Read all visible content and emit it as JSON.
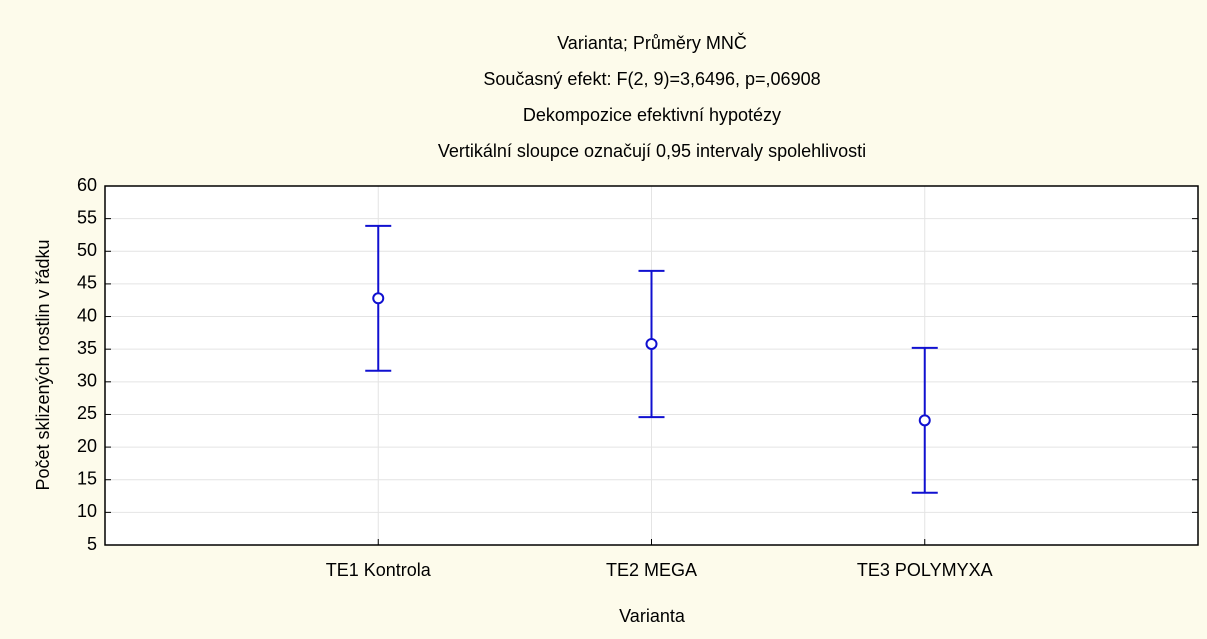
{
  "chart_data": {
    "type": "errorbar",
    "title": "Varianta; Průměry MNČ",
    "subtitles": [
      "Současný efekt: F(2, 9)=3,6496, p=,06908",
      "Dekompozice efektivní hypotézy",
      "Vertikální sloupce označují 0,95 intervaly spolehlivosti"
    ],
    "x_label": "Varianta",
    "y_label": "Počet sklizených rostlin v řádku",
    "categories": [
      "TE1 Kontrola",
      "TE2 MEGA",
      "TE3 POLYMYXA"
    ],
    "series": [
      {
        "name": "Průměry MNČ",
        "color": "#1010d0",
        "values": [
          42.8,
          35.8,
          24.1
        ],
        "errors": [
          11.1,
          11.2,
          11.1
        ]
      }
    ],
    "ylim": [
      5,
      60
    ],
    "yticks": [
      5,
      10,
      15,
      20,
      25,
      30,
      35,
      40,
      45,
      50,
      55,
      60
    ],
    "grid": true
  }
}
